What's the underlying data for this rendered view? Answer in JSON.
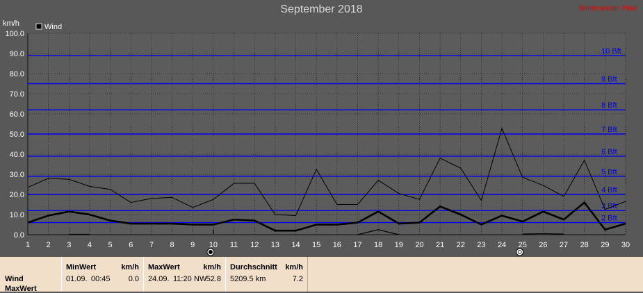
{
  "title": "September 2018",
  "warning": "Wetterstation Platz",
  "chart_data": {
    "type": "line",
    "ylabel": "km/h",
    "ylim": [
      0,
      100
    ],
    "yticks": [
      "0.0",
      "10.0",
      "20.0",
      "30.0",
      "40.0",
      "50.0",
      "60.0",
      "70.0",
      "80.0",
      "90.0",
      "100.0"
    ],
    "x": [
      1,
      2,
      3,
      4,
      5,
      6,
      7,
      8,
      9,
      10,
      11,
      12,
      13,
      14,
      15,
      16,
      17,
      18,
      19,
      20,
      21,
      22,
      23,
      24,
      25,
      26,
      27,
      28,
      29,
      30
    ],
    "legend": "Wind",
    "beaufort": [
      {
        "label": "2 Bft",
        "value": 6
      },
      {
        "label": "3 Bft",
        "value": 12
      },
      {
        "label": "4 Bft",
        "value": 20
      },
      {
        "label": "5 Bft",
        "value": 29
      },
      {
        "label": "6 Bft",
        "value": 39
      },
      {
        "label": "7 Bft",
        "value": 50
      },
      {
        "label": "8 Bft",
        "value": 62
      },
      {
        "label": "9 Bft",
        "value": 75
      },
      {
        "label": "10 Bft",
        "value": 89
      }
    ],
    "series": [
      {
        "name": "max",
        "values": [
          23.5,
          28.0,
          27.5,
          24.0,
          22.5,
          16.0,
          18.0,
          18.5,
          13.5,
          17.5,
          25.5,
          25.5,
          10.0,
          9.5,
          32.5,
          15.0,
          15.0,
          27.0,
          20.5,
          17.5,
          38.0,
          33.0,
          17.0,
          52.8,
          28.5,
          24.5,
          19.0,
          37.0,
          12.5,
          16.5
        ]
      },
      {
        "name": "avg",
        "values": [
          6.0,
          9.5,
          11.5,
          10.0,
          7.0,
          5.5,
          5.5,
          5.5,
          5.0,
          5.0,
          7.5,
          7.0,
          2.0,
          2.0,
          5.0,
          5.0,
          6.0,
          11.5,
          5.5,
          6.0,
          14.0,
          10.0,
          5.0,
          9.5,
          6.5,
          11.5,
          7.5,
          16.0,
          2.5,
          5.5
        ]
      }
    ],
    "min_segments": [
      {
        "x": [
          3,
          4
        ],
        "values": [
          0.2,
          0.2
        ]
      },
      {
        "x": [
          10,
          10
        ],
        "values": [
          0.3,
          2.5
        ]
      },
      {
        "x": [
          17,
          18,
          19
        ],
        "values": [
          0.0,
          2.5,
          0.0
        ]
      },
      {
        "x": [
          25,
          26,
          27
        ],
        "values": [
          0.3,
          0.5,
          0.3
        ]
      }
    ],
    "moon_markers": [
      {
        "day": 10,
        "icon": "new-moon-icon"
      },
      {
        "day": 25,
        "icon": "full-moon-icon"
      }
    ]
  },
  "panel": {
    "rows": [
      "Wind",
      "MaxWert"
    ],
    "min": {
      "title": "MinWert",
      "unit": "km/h",
      "date": "01.09.",
      "time": "00:45",
      "value": "0.0"
    },
    "max": {
      "title": "MaxWert",
      "unit": "km/h",
      "date": "24.09.",
      "time": "11:20",
      "dir": "NW",
      "value": "52.8"
    },
    "avg": {
      "title": "Durchschnitt",
      "unit": "km/h",
      "distance": "5209.5 km",
      "value": "7.2"
    }
  }
}
